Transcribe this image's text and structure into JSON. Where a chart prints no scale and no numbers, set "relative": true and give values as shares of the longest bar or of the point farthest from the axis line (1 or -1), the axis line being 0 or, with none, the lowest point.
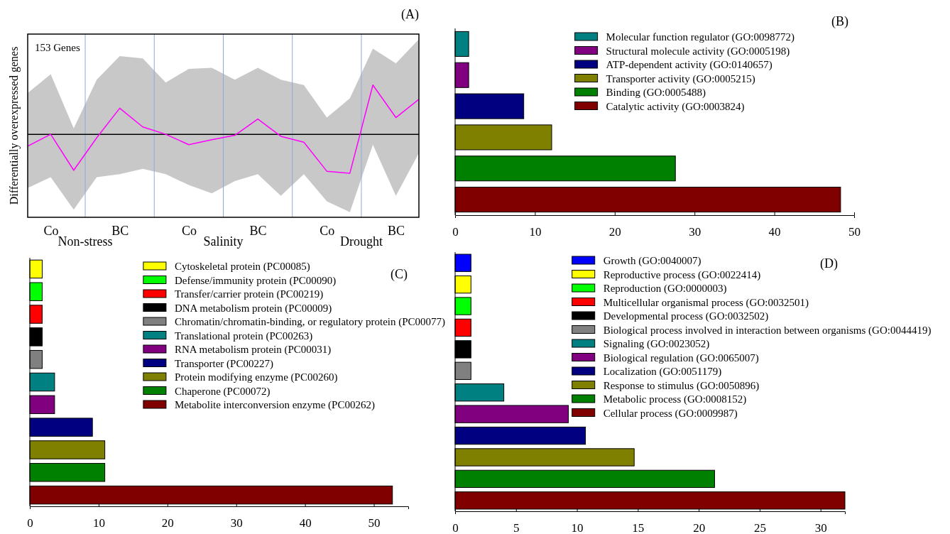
{
  "chart_data": [
    {
      "type": "line",
      "title": "(A)",
      "ylabel": "Differentially overexpressed genes",
      "relative": true,
      "tick_labels": "x",
      "annotations": [
        "153 Genes",
        "Non-stress",
        "Salinity",
        "Drought"
      ],
      "categories": [
        null,
        "Co",
        null,
        null,
        "BC",
        null,
        null,
        "Co",
        null,
        null,
        "BC",
        null,
        null,
        "Co",
        null,
        null,
        "BC",
        null
      ],
      "series": [
        {
          "color": "#ff00ff",
          "values": [
            -0.24,
            0,
            -0.73,
            -0.07,
            0.53,
            0.15,
            0,
            -0.21,
            -0.11,
            -0.02,
            0.31,
            -0.04,
            -0.16,
            -0.75,
            -0.79,
            1,
            0.34,
            0.71
          ],
          "upper": [
            0.84,
            1.22,
            0.12,
            1.11,
            1.59,
            1.54,
            1.05,
            1.33,
            1.35,
            1.11,
            1.35,
            1.11,
            1.0,
            0.34,
            0.73,
            1.74,
            1.44,
            1.93
          ],
          "lower": [
            -1.09,
            -0.87,
            -1.53,
            -0.87,
            -0.81,
            -0.7,
            -0.81,
            -1.03,
            -1.2,
            -0.95,
            -0.81,
            -1.25,
            -0.81,
            -1.36,
            -1.58,
            -0.21,
            -1.25,
            -0.38
          ]
        }
      ]
    },
    {
      "type": "bar",
      "orientation": "horizontal",
      "title": "(B)",
      "legend": "top right",
      "tick_labels": "x",
      "categories": [
        null,
        null,
        null,
        null,
        null,
        null
      ],
      "series": [
        {
          "name": "Molecular function regulator (GO:0098772)",
          "color": "#008080",
          "values": [
            1.7,
            null,
            null,
            null,
            null,
            null
          ]
        },
        {
          "name": "Structural molecule activity (GO:0005198)",
          "color": "#800080",
          "values": [
            null,
            1.7,
            null,
            null,
            null,
            null
          ]
        },
        {
          "name": "ATP-dependent activity (GO:0140657)",
          "color": "#000080",
          "values": [
            null,
            null,
            8.6,
            null,
            null,
            null
          ]
        },
        {
          "name": "Transporter activity (GO:0005215)",
          "color": "#808000",
          "values": [
            null,
            null,
            null,
            12.1,
            null,
            null
          ]
        },
        {
          "name": "Binding (GO:0005488)",
          "color": "#008000",
          "values": [
            null,
            null,
            null,
            null,
            27.6,
            null
          ]
        },
        {
          "name": "Catalytic activity (GO:0003824)",
          "color": "#800000",
          "values": [
            null,
            null,
            null,
            null,
            null,
            48.3
          ]
        }
      ],
      "xlim": [
        0,
        50
      ],
      "xticks": [
        0,
        10,
        20,
        30,
        40,
        50
      ]
    },
    {
      "type": "bar",
      "orientation": "horizontal",
      "title": "(C)",
      "legend": "top right",
      "tick_labels": "x",
      "categories": [
        null,
        null,
        null,
        null,
        null,
        null,
        null,
        null,
        null,
        null,
        null
      ],
      "series": [
        {
          "name": "Cytoskeletal protein (PC00085)",
          "color": "#ffff00",
          "values": [
            1.8,
            null,
            null,
            null,
            null,
            null,
            null,
            null,
            null,
            null,
            null
          ]
        },
        {
          "name": "Defense/immunity protein (PC00090)",
          "color": "#00ff00",
          "values": [
            null,
            1.8,
            null,
            null,
            null,
            null,
            null,
            null,
            null,
            null,
            null
          ]
        },
        {
          "name": "Transfer/carrier protein (PC00219)",
          "color": "#ff0000",
          "values": [
            null,
            null,
            1.8,
            null,
            null,
            null,
            null,
            null,
            null,
            null,
            null
          ]
        },
        {
          "name": "DNA metabolism protein (PC00009)",
          "color": "#000000",
          "values": [
            null,
            null,
            null,
            1.8,
            null,
            null,
            null,
            null,
            null,
            null,
            null
          ]
        },
        {
          "name": "Chromatin/chromatin-binding, or regulatory protein (PC00077)",
          "color": "#808080",
          "values": [
            null,
            null,
            null,
            null,
            1.8,
            null,
            null,
            null,
            null,
            null,
            null
          ]
        },
        {
          "name": "Translational protein (PC00263)",
          "color": "#008080",
          "values": [
            null,
            null,
            null,
            null,
            null,
            3.6,
            null,
            null,
            null,
            null,
            null
          ]
        },
        {
          "name": "RNA metabolism protein (PC00031)",
          "color": "#800080",
          "values": [
            null,
            null,
            null,
            null,
            null,
            null,
            3.6,
            null,
            null,
            null,
            null
          ]
        },
        {
          "name": "Transporter (PC00227)",
          "color": "#000080",
          "values": [
            null,
            null,
            null,
            null,
            null,
            null,
            null,
            9.1,
            null,
            null,
            null
          ]
        },
        {
          "name": "Protein modifying enzyme (PC00260)",
          "color": "#808000",
          "values": [
            null,
            null,
            null,
            null,
            null,
            null,
            null,
            null,
            10.9,
            null,
            null
          ]
        },
        {
          "name": "Chaperone (PC00072)",
          "color": "#008000",
          "values": [
            null,
            null,
            null,
            null,
            null,
            null,
            null,
            null,
            null,
            10.9,
            null
          ]
        },
        {
          "name": "Metabolite interconversion enzyme (PC00262)",
          "color": "#800000",
          "values": [
            null,
            null,
            null,
            null,
            null,
            null,
            null,
            null,
            null,
            null,
            52.7
          ]
        }
      ],
      "xlim": [
        0,
        55
      ],
      "xticks": [
        0,
        10,
        20,
        30,
        40,
        50
      ]
    },
    {
      "type": "bar",
      "orientation": "horizontal",
      "title": "(D)",
      "legend": "top right",
      "tick_labels": "x",
      "categories": [
        null,
        null,
        null,
        null,
        null,
        null,
        null,
        null,
        null,
        null,
        null,
        null
      ],
      "series": [
        {
          "name": "Growth (GO:0040007)",
          "color": "#0000ff",
          "values": [
            1.3,
            null,
            null,
            null,
            null,
            null,
            null,
            null,
            null,
            null,
            null,
            null
          ]
        },
        {
          "name": "Reproductive process (GO:0022414)",
          "color": "#ffff00",
          "values": [
            null,
            1.3,
            null,
            null,
            null,
            null,
            null,
            null,
            null,
            null,
            null,
            null
          ]
        },
        {
          "name": "Reproduction (GO:0000003)",
          "color": "#00ff00",
          "values": [
            null,
            null,
            1.3,
            null,
            null,
            null,
            null,
            null,
            null,
            null,
            null,
            null
          ]
        },
        {
          "name": "Multicellular organismal process (GO:0032501)",
          "color": "#ff0000",
          "values": [
            null,
            null,
            null,
            1.3,
            null,
            null,
            null,
            null,
            null,
            null,
            null,
            null
          ]
        },
        {
          "name": "Developmental process (GO:0032502)",
          "color": "#000000",
          "values": [
            null,
            null,
            null,
            null,
            1.3,
            null,
            null,
            null,
            null,
            null,
            null,
            null
          ]
        },
        {
          "name": "Biological process involved in interaction between organisms (GO:0044419)",
          "color": "#808080",
          "values": [
            null,
            null,
            null,
            null,
            null,
            1.3,
            null,
            null,
            null,
            null,
            null,
            null
          ]
        },
        {
          "name": "Signaling (GO:0023052)",
          "color": "#008080",
          "values": [
            null,
            null,
            null,
            null,
            null,
            null,
            4.0,
            null,
            null,
            null,
            null,
            null
          ]
        },
        {
          "name": "Biological regulation (GO:0065007)",
          "color": "#800080",
          "values": [
            null,
            null,
            null,
            null,
            null,
            null,
            null,
            9.3,
            null,
            null,
            null,
            null
          ]
        },
        {
          "name": "Localization (GO:0051179)",
          "color": "#000080",
          "values": [
            null,
            null,
            null,
            null,
            null,
            null,
            null,
            null,
            10.7,
            null,
            null,
            null
          ]
        },
        {
          "name": "Response to stimulus (GO:0050896)",
          "color": "#808000",
          "values": [
            null,
            null,
            null,
            null,
            null,
            null,
            null,
            null,
            null,
            14.7,
            null,
            null
          ]
        },
        {
          "name": "Metabolic process (GO:0008152)",
          "color": "#008000",
          "values": [
            null,
            null,
            null,
            null,
            null,
            null,
            null,
            null,
            null,
            null,
            21.3,
            null
          ]
        },
        {
          "name": "Cellular process (GO:0009987)",
          "color": "#800000",
          "values": [
            null,
            null,
            null,
            null,
            null,
            null,
            null,
            null,
            null,
            null,
            null,
            32.0
          ]
        }
      ],
      "xlim": [
        0,
        32
      ],
      "xticks": [
        0,
        5,
        10,
        15,
        20,
        25,
        30
      ]
    }
  ]
}
